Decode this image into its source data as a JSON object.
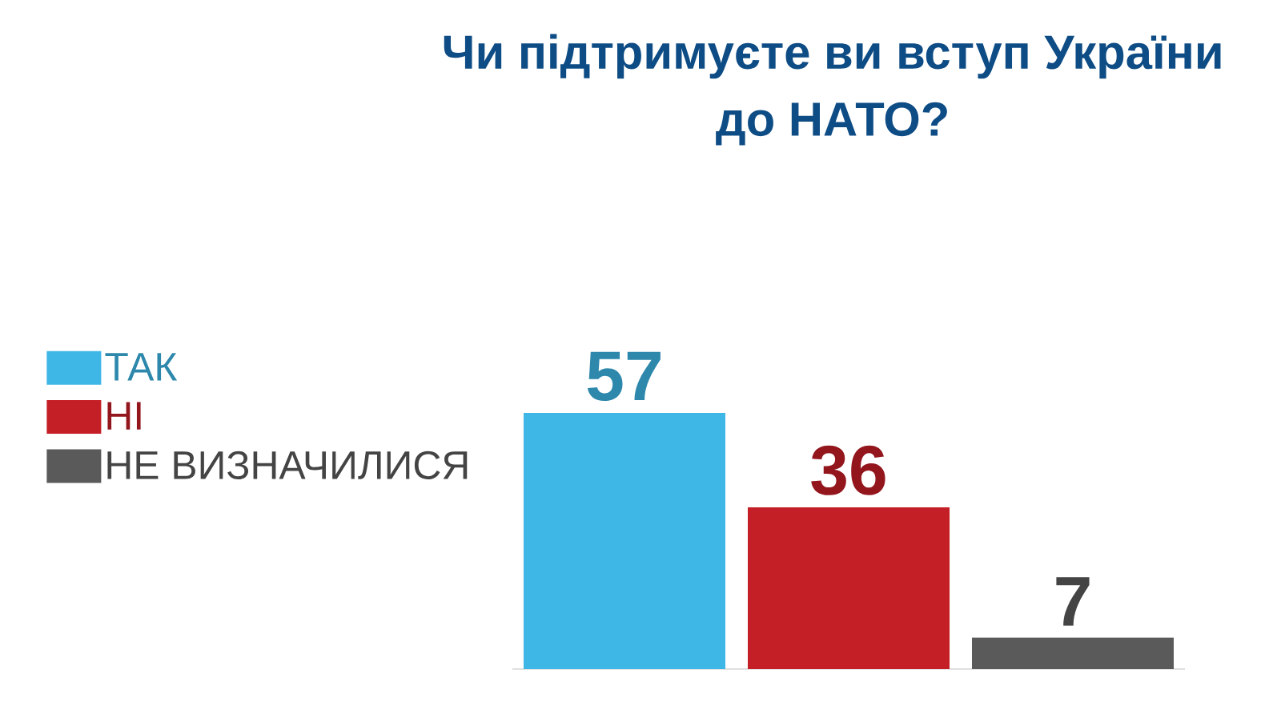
{
  "chart_data": {
    "type": "bar",
    "title": "Чи підтримуєте ви вступ України до НАТО?",
    "categories": [
      null,
      null,
      null
    ],
    "stacked": true,
    "series": [
      {
        "name": "ТАК",
        "color": "#3eb6e6",
        "values": [
          57,
          null,
          null
        ]
      },
      {
        "name": "НІ",
        "color": "#c41e26",
        "values": [
          null,
          36,
          null
        ]
      },
      {
        "name": "НЕ ВИЗНАЧИЛИСЯ",
        "color": "#5a5a5a",
        "values": [
          null,
          null,
          7
        ]
      }
    ],
    "data_labels": true,
    "legend": "left"
  }
}
